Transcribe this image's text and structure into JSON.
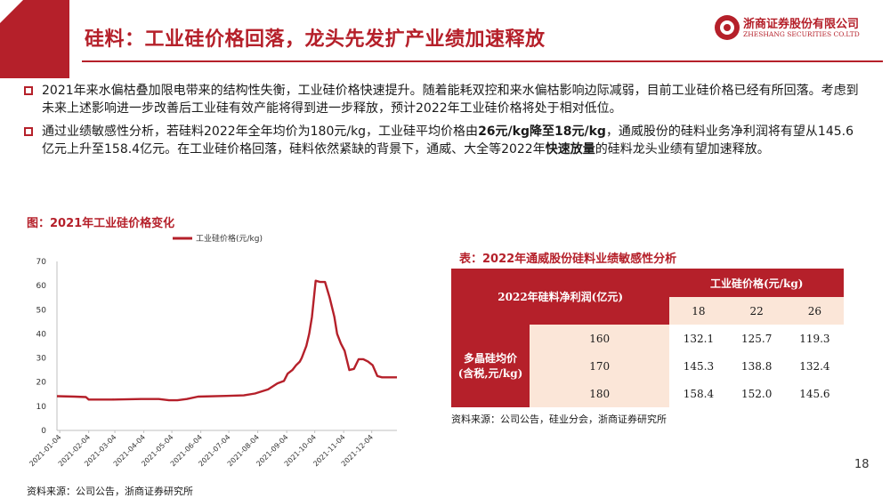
{
  "header": {
    "title": "硅料：工业硅价格回落，龙头先发扩产业绩加速释放",
    "logo_cn": "浙商证券股份有限公司",
    "logo_en": "ZHESHANG SECURITIES CO.LTD"
  },
  "bullets": [
    {
      "segments": [
        {
          "text": "2021年来水偏枯叠加限电带来的结构性失衡，工业硅价格快速提升。随着能耗双控和来水偏枯影响边际减弱，目前工业硅价格已经有所回落。考虑到未来上述影响进一步改善后工业硅有效产能将得到进一步释放，预计2022年工业硅价格将处于相对低位。",
          "bold": false
        }
      ]
    },
    {
      "segments": [
        {
          "text": "通过业绩敏感性分析，若硅料2022年全年均价为180元/kg，工业硅平均价格由",
          "bold": false
        },
        {
          "text": "26元/kg降至18元/kg",
          "bold": true
        },
        {
          "text": "，通威股份的硅料业务净利润将有望从145.6亿元上升至158.4亿元。在工业硅价格回落，硅料依然紧缺的背景下，通威、大全等2022年",
          "bold": false
        },
        {
          "text": "快速放量",
          "bold": true
        },
        {
          "text": "的硅料龙头业绩有望加速释放。",
          "bold": false
        }
      ]
    }
  ],
  "figure": {
    "title": "图：2021年工业硅价格变化",
    "source": "资料来源：公司公告，浙商证券研究所"
  },
  "chart_data": {
    "type": "line",
    "title": "",
    "xlabel": "",
    "ylabel": "",
    "legend": "top",
    "grid": false,
    "ylim": [
      0,
      70
    ],
    "yticks": [
      "0",
      "10",
      "20",
      "30",
      "40",
      "50",
      "60",
      "70"
    ],
    "xlim": [
      "2021-01-01",
      "2021-12-31"
    ],
    "xtick_labels": [
      "2021-01-04",
      "2021-02-04",
      "2021-03-04",
      "2021-04-04",
      "2021-05-04",
      "2021-06-04",
      "2021-07-04",
      "2021-08-04",
      "2021-09-04",
      "2021-10-04",
      "2021-11-04",
      "2021-12-04"
    ],
    "series": [
      {
        "name": "工业硅价格(元/kg)",
        "color": "#b5202a",
        "x": [
          "2021-01-01",
          "2021-01-20",
          "2021-02-01",
          "2021-02-04",
          "2021-03-01",
          "2021-04-01",
          "2021-04-20",
          "2021-05-01",
          "2021-05-10",
          "2021-05-20",
          "2021-06-01",
          "2021-07-01",
          "2021-07-20",
          "2021-08-01",
          "2021-08-15",
          "2021-08-25",
          "2021-09-01",
          "2021-09-05",
          "2021-09-10",
          "2021-09-14",
          "2021-09-18",
          "2021-09-20",
          "2021-09-25",
          "2021-09-28",
          "2021-10-01",
          "2021-10-05",
          "2021-10-10",
          "2021-10-15",
          "2021-10-20",
          "2021-10-25",
          "2021-10-28",
          "2021-11-01",
          "2021-11-05",
          "2021-11-10",
          "2021-11-15",
          "2021-11-20",
          "2021-11-25",
          "2021-11-30",
          "2021-12-05",
          "2021-12-10",
          "2021-12-15",
          "2021-12-31"
        ],
        "values": [
          14.2,
          14,
          13.8,
          12.8,
          12.8,
          13,
          13,
          12.5,
          12.5,
          13,
          14,
          14.3,
          14.5,
          15.3,
          17,
          19.5,
          20.5,
          23.5,
          25,
          27,
          28.5,
          30,
          35,
          40,
          47,
          62,
          61.5,
          61.5,
          55,
          47,
          40,
          36,
          33,
          25,
          25.5,
          29.5,
          29.5,
          28.5,
          27,
          22.5,
          22,
          22
        ]
      }
    ]
  },
  "table": {
    "title": "表：2022年通威股份硅料业绩敏感性分析",
    "corner_header": "2022年硅料净利润(亿元)",
    "col_group_header": "工业硅价格(元/kg)",
    "col_headers": [
      "18",
      "22",
      "26"
    ],
    "row_group_header_line1": "多晶硅均价",
    "row_group_header_line2": "(含税,元/kg)",
    "rows": [
      {
        "label": "160",
        "values": [
          "132.1",
          "125.7",
          "119.3"
        ]
      },
      {
        "label": "170",
        "values": [
          "145.3",
          "138.8",
          "132.4"
        ]
      },
      {
        "label": "180",
        "values": [
          "158.4",
          "152.0",
          "145.6"
        ]
      }
    ],
    "source": "资料来源：公司公告，硅业分会，浙商证券研究所"
  },
  "page_number": "18",
  "colors": {
    "brand_red": "#b5202a",
    "table_peach": "#fbe6d8"
  }
}
